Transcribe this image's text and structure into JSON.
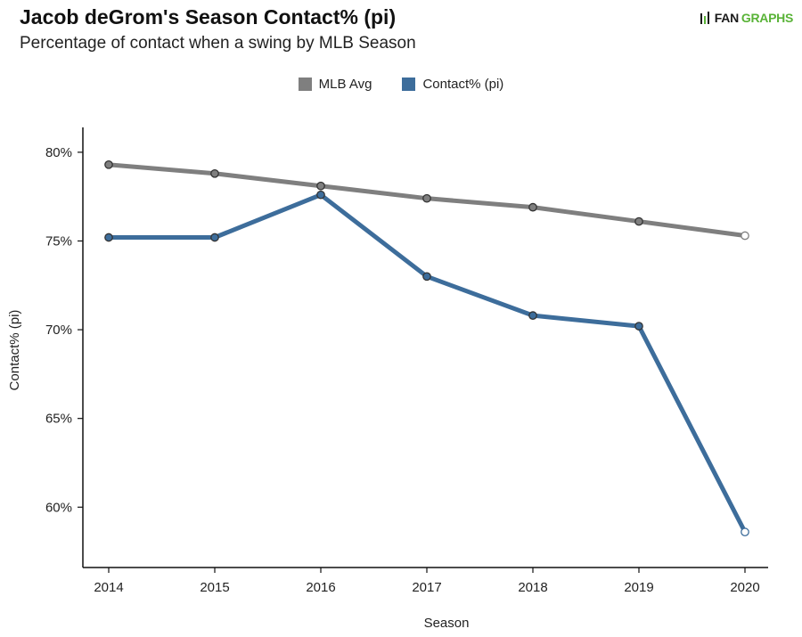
{
  "header": {
    "title": "Jacob deGrom's Season Contact% (pi)",
    "subtitle": "Percentage of contact when a swing by MLB Season",
    "logo_fan": "FAN",
    "logo_graphs": "GRAPHS"
  },
  "colors": {
    "mlb_avg": "#7f7f7f",
    "player": "#3d6d9b",
    "axis": "#111111",
    "logo_green": "#59b337"
  },
  "icons": {
    "logo": "fangraphs-logo-icon"
  },
  "chart_data": {
    "type": "line",
    "title": "Jacob deGrom's Season Contact% (pi)",
    "subtitle": "Percentage of contact when a swing by MLB Season",
    "xlabel": "Season",
    "ylabel": "Contact% (pi)",
    "categories": [
      "2014",
      "2015",
      "2016",
      "2017",
      "2018",
      "2019",
      "2020"
    ],
    "yticks": [
      60,
      65,
      70,
      75,
      80
    ],
    "ytick_labels": [
      "60%",
      "65%",
      "70%",
      "75%",
      "80%"
    ],
    "ylim": [
      56.6,
      81.4
    ],
    "legend_position": "top-center",
    "series": [
      {
        "name": "MLB Avg",
        "values": [
          79.3,
          78.8,
          78.1,
          77.4,
          76.9,
          76.1,
          75.3
        ],
        "last_point_hollow": true
      },
      {
        "name": "Contact% (pi)",
        "values": [
          75.2,
          75.2,
          77.6,
          73.0,
          70.8,
          70.2,
          58.6
        ],
        "last_point_hollow": true
      }
    ]
  }
}
